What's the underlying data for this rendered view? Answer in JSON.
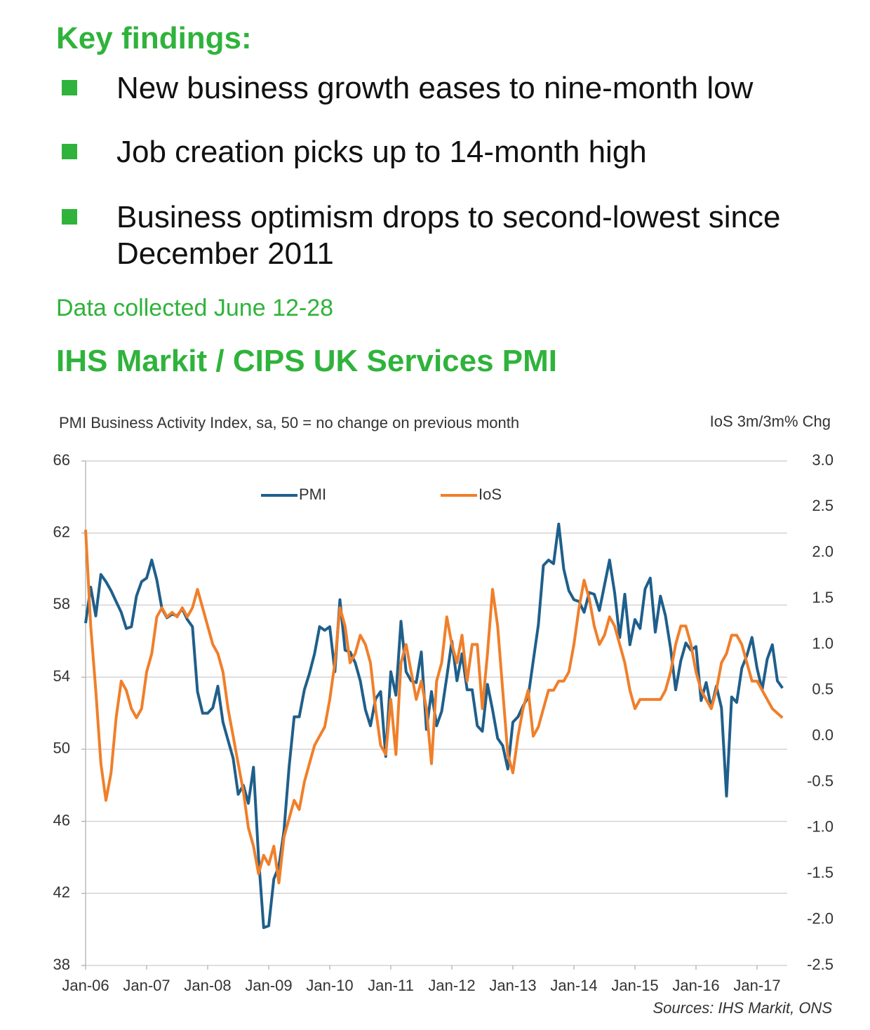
{
  "header": {
    "title": "Key findings:",
    "bullets": [
      "New business growth eases to nine-month low",
      "Job creation picks up to 14-month high",
      "Business optimism drops to second-lowest since December 2011"
    ],
    "note": "Data collected June 12-28",
    "chart_title": "IHS Markit / CIPS UK Services PMI"
  },
  "chart_data": {
    "type": "line",
    "ylabel": "PMI Business Activity Index, sa, 50 = no change on previous month",
    "y2label": "IoS 3m/3m% Chg",
    "source": "Sources: IHS Markit, ONS",
    "categories": [
      "Jan-06",
      null,
      null,
      null,
      null,
      null,
      null,
      null,
      null,
      null,
      null,
      null,
      "Jan-07",
      null,
      null,
      null,
      null,
      null,
      null,
      null,
      null,
      null,
      null,
      null,
      "Jan-08",
      null,
      null,
      null,
      null,
      null,
      null,
      null,
      null,
      null,
      null,
      null,
      "Jan-09",
      null,
      null,
      null,
      null,
      null,
      null,
      null,
      null,
      null,
      null,
      null,
      "Jan-10",
      null,
      null,
      null,
      null,
      null,
      null,
      null,
      null,
      null,
      null,
      null,
      "Jan-11",
      null,
      null,
      null,
      null,
      null,
      null,
      null,
      null,
      null,
      null,
      null,
      "Jan-12",
      null,
      null,
      null,
      null,
      null,
      null,
      null,
      null,
      null,
      null,
      null,
      "Jan-13",
      null,
      null,
      null,
      null,
      null,
      null,
      null,
      null,
      null,
      null,
      null,
      "Jan-14",
      null,
      null,
      null,
      null,
      null,
      null,
      null,
      null,
      null,
      null,
      null,
      "Jan-15",
      null,
      null,
      null,
      null,
      null,
      null,
      null,
      null,
      null,
      null,
      null,
      "Jan-16",
      null,
      null,
      null,
      null,
      null,
      null,
      null,
      null,
      null,
      null,
      null,
      "Jan-17",
      null,
      null,
      null,
      null,
      null
    ],
    "series": [
      {
        "name": "PMI",
        "color": "#1f5f8b",
        "values": [
          57.0,
          59.0,
          57.4,
          59.7,
          59.3,
          58.8,
          58.2,
          57.6,
          56.7,
          56.8,
          58.5,
          59.3,
          59.5,
          60.5,
          59.4,
          57.8,
          57.3,
          57.5,
          57.4,
          57.8,
          57.2,
          56.8,
          53.2,
          52.0,
          52.0,
          52.3,
          53.5,
          51.5,
          50.5,
          49.5,
          47.5,
          48.0,
          47.0,
          49.0,
          44.0,
          40.1,
          40.2,
          42.8,
          43.5,
          45.5,
          49.0,
          51.8,
          51.8,
          53.3,
          54.2,
          55.3,
          56.8,
          56.6,
          56.8,
          54.3,
          58.3,
          55.5,
          55.4,
          54.8,
          53.8,
          52.2,
          51.3,
          52.8,
          53.2,
          49.6,
          54.3,
          53.0,
          57.1,
          54.3,
          53.8,
          53.7,
          55.4,
          51.1,
          53.2,
          51.3,
          52.1,
          54.0,
          56.0,
          53.8,
          55.3,
          53.3,
          53.3,
          51.3,
          51.0,
          53.6,
          52.2,
          50.6,
          50.2,
          48.9,
          51.5,
          51.8,
          52.4,
          52.9,
          54.9,
          56.9,
          60.2,
          60.5,
          60.3,
          62.5,
          60.0,
          58.8,
          58.3,
          58.2,
          57.6,
          58.7,
          58.6,
          57.7,
          59.1,
          60.5,
          58.7,
          56.2,
          58.6,
          55.8,
          57.2,
          56.7,
          58.9,
          59.5,
          56.5,
          58.5,
          57.4,
          55.6,
          53.3,
          54.9,
          55.9,
          55.5,
          55.7,
          52.7,
          53.7,
          52.3,
          53.5,
          52.3,
          47.4,
          52.9,
          52.6,
          54.5,
          55.2,
          56.2,
          54.5,
          53.3,
          55.0,
          55.8,
          53.8,
          53.4
        ]
      },
      {
        "name": "IoS",
        "color": "#f07f2a",
        "axis": "y2",
        "values": [
          2.25,
          1.2,
          0.5,
          -0.3,
          -0.7,
          -0.4,
          0.2,
          0.6,
          0.5,
          0.3,
          0.2,
          0.3,
          0.7,
          0.9,
          1.3,
          1.4,
          1.3,
          1.35,
          1.3,
          1.4,
          1.3,
          1.4,
          1.6,
          1.4,
          1.2,
          1.0,
          0.9,
          0.7,
          0.3,
          0.0,
          -0.3,
          -0.6,
          -1.0,
          -1.2,
          -1.5,
          -1.3,
          -1.4,
          -1.2,
          -1.6,
          -1.1,
          -0.9,
          -0.7,
          -0.8,
          -0.5,
          -0.3,
          -0.1,
          0.0,
          0.1,
          0.4,
          0.8,
          1.4,
          1.2,
          0.8,
          0.9,
          1.1,
          1.0,
          0.8,
          0.3,
          -0.1,
          -0.2,
          0.4,
          -0.2,
          0.8,
          1.0,
          0.7,
          0.4,
          0.6,
          0.3,
          -0.3,
          0.6,
          0.8,
          1.3,
          1.0,
          0.8,
          1.1,
          0.6,
          1.0,
          1.0,
          0.3,
          0.9,
          1.6,
          1.2,
          0.5,
          -0.2,
          -0.4,
          0.0,
          0.3,
          0.5,
          0.0,
          0.1,
          0.3,
          0.5,
          0.5,
          0.6,
          0.6,
          0.7,
          1.0,
          1.4,
          1.7,
          1.5,
          1.2,
          1.0,
          1.1,
          1.3,
          1.2,
          1.0,
          0.8,
          0.5,
          0.3,
          0.4,
          0.4,
          0.4,
          0.4,
          0.4,
          0.5,
          0.7,
          1.0,
          1.2,
          1.2,
          1.0,
          0.7,
          0.5,
          0.4,
          0.3,
          0.5,
          0.8,
          0.9,
          1.1,
          1.1,
          1.0,
          0.8,
          0.6,
          0.6,
          0.5,
          0.4,
          0.3,
          0.25,
          0.2
        ]
      }
    ],
    "ylim": [
      38,
      66
    ],
    "yticks": [
      38,
      42,
      46,
      50,
      54,
      58,
      62,
      66
    ],
    "y2lim": [
      -2.5,
      3
    ],
    "y2ticks": [
      -2.5,
      {
        "value": -2,
        "label": "-2.0"
      },
      -1.5,
      {
        "value": -1,
        "label": "-1.0"
      },
      -0.5,
      {
        "value": 0,
        "label": "0.0"
      },
      0.5,
      {
        "value": 1,
        "label": "1.0"
      },
      1.5,
      {
        "value": 2,
        "label": "2.0"
      },
      2.5,
      {
        "value": 3,
        "label": "3.0"
      }
    ],
    "grid": true
  }
}
